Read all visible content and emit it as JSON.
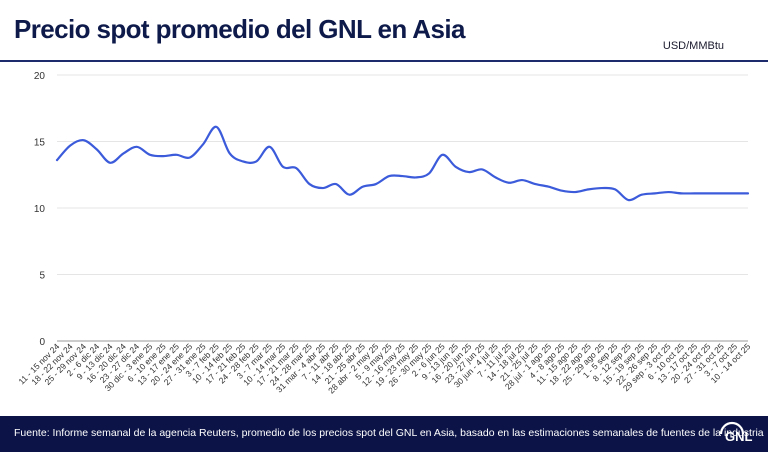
{
  "header": {
    "title": "Precio spot promedio del GNL en Asia",
    "unit": "USD/MMBtu"
  },
  "footer": {
    "source": "Fuente: Informe semanal de la agencia Reuters, promedio de los precios spot del GNL en Asia, basado en las estimaciones semanales de fuentes de la industria",
    "logo_text": "GNL"
  },
  "colors": {
    "line": "#3b5bdb",
    "title": "#0d1a4a",
    "footer_bg": "#0c1447",
    "grid": "#e5e5e5"
  },
  "chart_data": {
    "type": "line",
    "title": "Precio spot promedio del GNL en Asia",
    "ylabel": "USD/MMBtu",
    "xlabel": "",
    "ylim": [
      0,
      20
    ],
    "yticks": [
      0,
      5,
      10,
      15,
      20
    ],
    "grid": "horizontal",
    "legend": "none",
    "categories": [
      "11 - 15 nov 24",
      "18 - 22 nov 24",
      "25 - 29 nov 24",
      "2 - 6 dic 24",
      "9 - 13 dic 24",
      "16 - 20 dic 24",
      "23 - 27 dic 24",
      "30 dic - 3 ene 25",
      "6 - 10 ene 25",
      "13 - 17 ene 25",
      "20 - 24 ene 25",
      "27 - 31 ene 25",
      "3 - 7 feb 25",
      "10 - 14 feb 25",
      "17 - 21 feb 25",
      "24 - 28 feb 25",
      "3 - 7 mar 25",
      "10 - 14 mar 25",
      "17 - 21 mar 25",
      "24 - 28 mar 25",
      "31 mar - 4 abr 25",
      "7 - 11 abr 25",
      "14 - 18 abr 25",
      "21 - 25 abr 25",
      "28 abr - 2 may 25",
      "5 - 9 may 25",
      "12 - 16 may 25",
      "19 - 23 may 25",
      "26 - 30 may 25",
      "2 - 6 jun 25",
      "9 - 13 jun 25",
      "16 - 20 jun 25",
      "23 - 27 jun 25",
      "30 jun - 4 jul 25",
      "7 - 11 jul 25",
      "14 - 18 jul 25",
      "21 - 25 jul 25",
      "28 jul - 1 ago 25",
      "4 - 8 ago 25",
      "11 - 15 ago 25",
      "18 - 22 ago 25",
      "25 - 29 ago 25",
      "1 - 5 sep 25",
      "8 - 12 sep 25",
      "15 - 19 sep 25",
      "22 - 26 sep 25",
      "29 sep - 3 oct 25",
      "6 - 10 oct 25",
      "13 - 17 oct 25",
      "20 - 24 oct 25",
      "27 - 31 oct 25",
      "3 - 7 oct 25",
      "10 - 14 oct 25"
    ],
    "series": [
      {
        "values": [
          13.6,
          14.7,
          15.1,
          14.4,
          13.4,
          14.1,
          14.6,
          14.0,
          13.9,
          14.0,
          13.8,
          14.8,
          16.1,
          14.1,
          13.5,
          13.5,
          14.6,
          13.1,
          13.0,
          11.8,
          11.5,
          11.8,
          11.0,
          11.6,
          11.8,
          12.4,
          12.4,
          12.3,
          12.6,
          14.0,
          13.1,
          12.7,
          12.9,
          12.3,
          11.9,
          12.1,
          11.8,
          11.6,
          11.3,
          11.2,
          11.4,
          11.5,
          11.4,
          10.6,
          11.0,
          11.1,
          11.2,
          11.1,
          11.1,
          11.1,
          11.1,
          11.1,
          11.1
        ]
      }
    ]
  }
}
